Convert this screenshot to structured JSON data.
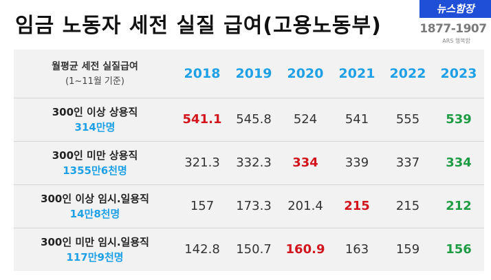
{
  "title": "임금 노동자 세전 실질 급여(고용노동부)",
  "logo": {
    "name": "뉴스함장",
    "phone": "1877-1907",
    "sub": "ARS 행복함"
  },
  "colors": {
    "year_header": "#1ea0e6",
    "highlight_red": "#d2141c",
    "highlight_green": "#1e9c44"
  },
  "table": {
    "header_label": "월평균 세전 실질급여",
    "header_sub": "(1~11월 기준)",
    "years": [
      "2018",
      "2019",
      "2020",
      "2021",
      "2022",
      "2023"
    ],
    "rows": [
      {
        "label": "300인 이상 상용직",
        "count": "314만명",
        "values": [
          "541.1",
          "545.8",
          "524",
          "541",
          "555",
          "539"
        ],
        "highlights": [
          "red",
          "",
          "",
          "",
          "",
          "green"
        ]
      },
      {
        "label": "300인 미만 상용직",
        "count": "1355만6천명",
        "values": [
          "321.3",
          "332.3",
          "334",
          "339",
          "337",
          "334"
        ],
        "highlights": [
          "",
          "",
          "red",
          "",
          "",
          "green"
        ]
      },
      {
        "label": "300인 이상 임시.일용직",
        "count": "14만8천명",
        "values": [
          "157",
          "173.3",
          "201.4",
          "215",
          "215",
          "212"
        ],
        "highlights": [
          "",
          "",
          "",
          "red",
          "",
          "green"
        ]
      },
      {
        "label": "300인 미만 임시.일용직",
        "count": "117만9천명",
        "values": [
          "142.8",
          "150.7",
          "160.9",
          "163",
          "159",
          "156"
        ],
        "highlights": [
          "",
          "",
          "red",
          "",
          "",
          "green"
        ]
      }
    ]
  }
}
